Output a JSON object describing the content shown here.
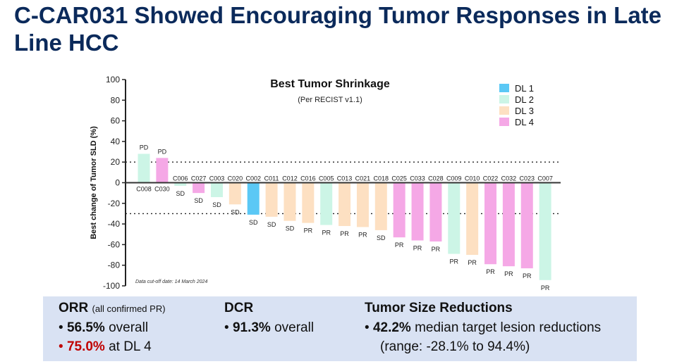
{
  "title": "C-CAR031 Showed Encouraging Tumor Responses in Late Line HCC",
  "chart_data": {
    "type": "bar",
    "title": "Best Tumor Shrinkage",
    "subtitle": "(Per RECIST v1.1)",
    "ylabel": "Best change of Tumor SLD (%)",
    "ylim": [
      -100,
      100
    ],
    "yticks": [
      100,
      80,
      60,
      40,
      20,
      0,
      -20,
      -40,
      -60,
      -80,
      -100
    ],
    "reference_lines": [
      20,
      -30
    ],
    "footnote": "Data cut-off date: 14 March 2024",
    "legend_position": "top-right",
    "legend": [
      {
        "name": "DL 1",
        "color": "#5bc8f5"
      },
      {
        "name": "DL 2",
        "color": "#ccf5e6"
      },
      {
        "name": "DL 3",
        "color": "#fde0c2"
      },
      {
        "name": "DL 4",
        "color": "#f5a8e6"
      }
    ],
    "categories": [
      "C008",
      "C030",
      "C006",
      "C027",
      "C003",
      "C020",
      "C002",
      "C011",
      "C012",
      "C016",
      "C005",
      "C013",
      "C021",
      "C018",
      "C025",
      "C033",
      "C028",
      "C009",
      "C010",
      "C022",
      "C032",
      "C023",
      "C007"
    ],
    "values": [
      28,
      24,
      -3,
      -10,
      -14,
      -21,
      -31,
      -33,
      -37,
      -39,
      -41,
      -42,
      -43,
      -46,
      -53,
      -56,
      -57,
      -69,
      -70,
      -79,
      -81,
      -83,
      -94.4
    ],
    "dose_level": [
      "DL 2",
      "DL 4",
      "DL 2",
      "DL 4",
      "DL 2",
      "DL 3",
      "DL 1",
      "DL 3",
      "DL 3",
      "DL 3",
      "DL 2",
      "DL 3",
      "DL 3",
      "DL 3",
      "DL 4",
      "DL 4",
      "DL 4",
      "DL 2",
      "DL 3",
      "DL 4",
      "DL 4",
      "DL 4",
      "DL 2"
    ],
    "response": [
      "PD",
      "PD",
      "SD",
      "SD",
      "SD",
      "SD",
      "SD",
      "SD",
      "SD",
      "PR",
      "PR",
      "PR",
      "PR",
      "SD",
      "PR",
      "PR",
      "PR",
      "PR",
      "PR",
      "PR",
      "PR",
      "PR",
      "PR"
    ]
  },
  "summary": {
    "orr": {
      "title": "ORR",
      "note": "(all confirmed PR)",
      "b1_value": "56.5%",
      "b1_text": " overall",
      "b2_value": "75.0%",
      "b2_text": " at DL 4"
    },
    "dcr": {
      "title": "DCR",
      "b1_value": "91.3%",
      "b1_text": " overall"
    },
    "tsr": {
      "title": "Tumor Size Reductions",
      "b1_value": "42.2%",
      "b1_text": " median target lesion reductions",
      "b1_cont": "(range: -28.1% to 94.4%)"
    }
  },
  "bullet": "•"
}
